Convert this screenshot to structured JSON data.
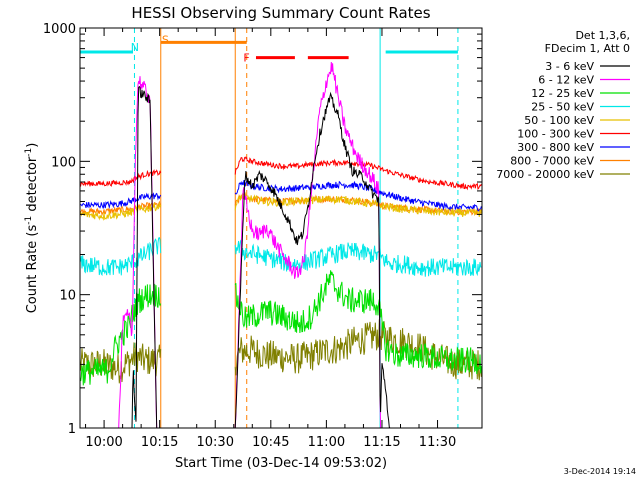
{
  "chart_data": {
    "type": "line",
    "title": "HESSI Observing Summary Count Rates",
    "xlabel": "Start Time (03-Dec-14 09:53:02)",
    "ylabel_main": "Count Rate (s",
    "ylabel_sup1": "-1",
    "ylabel_mid": " detector",
    "ylabel_sup2": "-1",
    "ylabel_end": ")",
    "ylog": true,
    "ylim": [
      1,
      1000
    ],
    "xlim_minutes": [
      -6.5,
      102
    ],
    "x_ticks": [
      {
        "t": 0,
        "label": "10:00"
      },
      {
        "t": 15,
        "label": "10:15"
      },
      {
        "t": 30,
        "label": "10:30"
      },
      {
        "t": 45,
        "label": "10:45"
      },
      {
        "t": 60,
        "label": "11:00"
      },
      {
        "t": 75,
        "label": "11:15"
      },
      {
        "t": 90,
        "label": "11:30"
      }
    ],
    "y_ticks": [
      {
        "v": 1,
        "label": "1"
      },
      {
        "v": 10,
        "label": "10"
      },
      {
        "v": 100,
        "label": "100"
      },
      {
        "v": 1000,
        "label": "1000"
      }
    ],
    "legend_header": [
      "Det 1,3,6,",
      "FDecim 1, Att 0"
    ],
    "legend": [
      {
        "label": "3 - 6 keV",
        "color": "#000000"
      },
      {
        "label": "6 - 12 keV",
        "color": "#ff00ff"
      },
      {
        "label": "12 - 25 keV",
        "color": "#00e000"
      },
      {
        "label": "25 - 50 keV",
        "color": "#00e8e8"
      },
      {
        "label": "50 - 100 keV",
        "color": "#e8c000"
      },
      {
        "label": "100 - 300 keV",
        "color": "#ff0000"
      },
      {
        "label": "300 - 800 keV",
        "color": "#0000ff"
      },
      {
        "label": "800 - 7000 keV",
        "color": "#ff8000"
      },
      {
        "label": "7000 - 20000 keV",
        "color": "#808000"
      }
    ],
    "segments": [
      [
        -6.5,
        15.3
      ],
      [
        35.4,
        102
      ]
    ],
    "annotations": {
      "night_color": "#00e8e8",
      "saa_color": "#ff8000",
      "flare_color": "#ff0000",
      "night_bars": [
        [
          -6.5,
          7.8
        ],
        [
          76,
          95.5
        ]
      ],
      "saa_bar": [
        15.3,
        38.5
      ],
      "flare_bars": [
        [
          41,
          51.5
        ],
        [
          55,
          66
        ]
      ],
      "solid_lines": [
        {
          "t": -6.5,
          "color": "#00e8e8"
        },
        {
          "t": 15.3,
          "color": "#ff8000"
        },
        {
          "t": 35.4,
          "color": "#ff8000"
        },
        {
          "t": 74.5,
          "color": "#00e8e8"
        }
      ],
      "dashed_lines": [
        {
          "t": 8.2,
          "color": "#00e8e8"
        },
        {
          "t": 38.5,
          "color": "#ff8000"
        },
        {
          "t": 95.5,
          "color": "#00e8e8"
        }
      ],
      "labels": [
        {
          "text": "N",
          "t": 7.2,
          "v": 720,
          "color": "#00e8e8"
        },
        {
          "text": "S",
          "t": 15.6,
          "v": 820,
          "color": "#ff8000"
        },
        {
          "text": "F",
          "t": 37.6,
          "v": 600,
          "color": "#ff0000"
        }
      ]
    },
    "series": [
      {
        "band": "3 - 6 keV",
        "color": "#000000",
        "points": [
          [
            -6.5,
            1
          ],
          [
            7.6,
            1
          ],
          [
            7.8,
            3
          ],
          [
            8.6,
            1
          ],
          [
            9.2,
            340
          ],
          [
            11,
            310
          ],
          [
            12.4,
            280
          ],
          [
            14.2,
            1
          ],
          [
            15.3,
            1
          ],
          [
            35.4,
            1
          ],
          [
            38,
            80
          ],
          [
            40,
            65
          ],
          [
            42,
            80
          ],
          [
            44,
            70
          ],
          [
            46,
            58
          ],
          [
            48,
            45
          ],
          [
            50,
            35
          ],
          [
            52,
            25
          ],
          [
            53.5,
            28
          ],
          [
            55,
            45
          ],
          [
            57,
            110
          ],
          [
            59,
            200
          ],
          [
            61,
            300
          ],
          [
            63,
            230
          ],
          [
            65,
            130
          ],
          [
            67,
            85
          ],
          [
            70,
            75
          ],
          [
            72,
            60
          ],
          [
            73,
            55
          ],
          [
            74.2,
            52
          ],
          [
            74.5,
            1
          ],
          [
            75,
            3
          ],
          [
            76,
            2
          ],
          [
            77,
            1
          ],
          [
            102,
            1
          ]
        ]
      },
      {
        "band": "6 - 12 keV",
        "color": "#ff00ff",
        "points": [
          [
            -6.5,
            1
          ],
          [
            4,
            1
          ],
          [
            5,
            6
          ],
          [
            6.5,
            7
          ],
          [
            7.6,
            5
          ],
          [
            8.4,
            100
          ],
          [
            9.2,
            420
          ],
          [
            11,
            340
          ],
          [
            12.4,
            300
          ],
          [
            14.2,
            1
          ],
          [
            15.3,
            1
          ],
          [
            35.4,
            1
          ],
          [
            37.5,
            60
          ],
          [
            39,
            40
          ],
          [
            40,
            30
          ],
          [
            42,
            28
          ],
          [
            44,
            32
          ],
          [
            46,
            25
          ],
          [
            48,
            20
          ],
          [
            50,
            17
          ],
          [
            52,
            14
          ],
          [
            54,
            18
          ],
          [
            56,
            60
          ],
          [
            58,
            220
          ],
          [
            60,
            400
          ],
          [
            61.5,
            520
          ],
          [
            63,
            320
          ],
          [
            65,
            180
          ],
          [
            67,
            130
          ],
          [
            69,
            100
          ],
          [
            71,
            85
          ],
          [
            73,
            70
          ],
          [
            74.2,
            60
          ],
          [
            74.5,
            1
          ],
          [
            78,
            1
          ],
          [
            80,
            1
          ],
          [
            81,
            1
          ],
          [
            102,
            1
          ]
        ]
      },
      {
        "band": "12 - 25 keV",
        "color": "#00e000",
        "points": [
          [
            -6.5,
            2.6
          ],
          [
            1,
            2.7
          ],
          [
            3,
            4
          ],
          [
            5,
            5
          ],
          [
            7,
            6
          ],
          [
            7.6,
            7
          ],
          [
            9.2,
            9
          ],
          [
            12,
            10
          ],
          [
            14.2,
            10
          ],
          [
            15.3,
            10
          ],
          [
            35.4,
            10
          ],
          [
            38,
            6.5
          ],
          [
            41,
            7
          ],
          [
            44,
            7.5
          ],
          [
            47,
            7
          ],
          [
            50,
            6.5
          ],
          [
            53,
            6
          ],
          [
            56,
            7
          ],
          [
            58,
            9
          ],
          [
            61,
            13
          ],
          [
            63,
            11
          ],
          [
            66,
            9
          ],
          [
            69,
            9
          ],
          [
            72,
            9
          ],
          [
            74,
            8.5
          ],
          [
            76,
            4
          ],
          [
            79,
            3.5
          ],
          [
            82,
            3.5
          ],
          [
            86,
            3.5
          ],
          [
            90,
            3.3
          ],
          [
            95,
            3.2
          ],
          [
            102,
            3.2
          ]
        ]
      },
      {
        "band": "25 - 50 keV",
        "color": "#00e8e8",
        "points": [
          [
            -6.5,
            17
          ],
          [
            0,
            16
          ],
          [
            4,
            16
          ],
          [
            7,
            17
          ],
          [
            8.5,
            18
          ],
          [
            11,
            20
          ],
          [
            14.2,
            23
          ],
          [
            15.3,
            23
          ],
          [
            35.4,
            23
          ],
          [
            38,
            21
          ],
          [
            41,
            20
          ],
          [
            44,
            19
          ],
          [
            47,
            18
          ],
          [
            50,
            17
          ],
          [
            53,
            17
          ],
          [
            56,
            18
          ],
          [
            59,
            19
          ],
          [
            62,
            20
          ],
          [
            65,
            21
          ],
          [
            68,
            21
          ],
          [
            72,
            20
          ],
          [
            74,
            20
          ],
          [
            77,
            17
          ],
          [
            81,
            17
          ],
          [
            85,
            16
          ],
          [
            89,
            16
          ],
          [
            95,
            16
          ],
          [
            102,
            16
          ]
        ]
      },
      {
        "band": "50 - 100 keV",
        "color": "#e8c000",
        "points": [
          [
            -6.5,
            40
          ],
          [
            0,
            39
          ],
          [
            4,
            40
          ],
          [
            7,
            41
          ],
          [
            8.5,
            43
          ],
          [
            11,
            44
          ],
          [
            14.2,
            46
          ],
          [
            15.3,
            46
          ],
          [
            35.4,
            46
          ],
          [
            37,
            55
          ],
          [
            40,
            52
          ],
          [
            44,
            50
          ],
          [
            48,
            49
          ],
          [
            52,
            50
          ],
          [
            56,
            51
          ],
          [
            60,
            52
          ],
          [
            64,
            52
          ],
          [
            68,
            50
          ],
          [
            72,
            48
          ],
          [
            76,
            46
          ],
          [
            80,
            44
          ],
          [
            84,
            43
          ],
          [
            88,
            42
          ],
          [
            95,
            41
          ],
          [
            102,
            41
          ]
        ]
      },
      {
        "band": "100 - 300 keV",
        "color": "#ff0000",
        "points": [
          [
            -6.5,
            68
          ],
          [
            0,
            68
          ],
          [
            4,
            69
          ],
          [
            7,
            70
          ],
          [
            8.5,
            75
          ],
          [
            11,
            80
          ],
          [
            14.2,
            82
          ],
          [
            15.3,
            82
          ],
          [
            35.4,
            82
          ],
          [
            37,
            105
          ],
          [
            40,
            100
          ],
          [
            44,
            95
          ],
          [
            48,
            92
          ],
          [
            52,
            92
          ],
          [
            56,
            95
          ],
          [
            60,
            97
          ],
          [
            64,
            98
          ],
          [
            68,
            97
          ],
          [
            72,
            93
          ],
          [
            76,
            85
          ],
          [
            80,
            79
          ],
          [
            84,
            74
          ],
          [
            88,
            70
          ],
          [
            92,
            68
          ],
          [
            97,
            65
          ],
          [
            102,
            65
          ]
        ]
      },
      {
        "band": "300 - 800 keV",
        "color": "#0000ff",
        "points": [
          [
            -6.5,
            47
          ],
          [
            0,
            47
          ],
          [
            4,
            48
          ],
          [
            7,
            50
          ],
          [
            8.5,
            52
          ],
          [
            11,
            54
          ],
          [
            14.2,
            55
          ],
          [
            15.3,
            55
          ],
          [
            35.4,
            55
          ],
          [
            37,
            70
          ],
          [
            40,
            65
          ],
          [
            44,
            63
          ],
          [
            48,
            62
          ],
          [
            52,
            63
          ],
          [
            56,
            64
          ],
          [
            60,
            66
          ],
          [
            64,
            67
          ],
          [
            68,
            66
          ],
          [
            72,
            62
          ],
          [
            76,
            57
          ],
          [
            80,
            53
          ],
          [
            84,
            50
          ],
          [
            88,
            48
          ],
          [
            92,
            46
          ],
          [
            97,
            45
          ],
          [
            102,
            45
          ]
        ]
      },
      {
        "band": "800 - 7000 keV",
        "color": "#ff8000",
        "points": [
          [
            -6.5,
            42
          ],
          [
            0,
            42
          ],
          [
            4,
            43
          ],
          [
            7,
            44
          ],
          [
            8.5,
            45
          ],
          [
            11,
            46
          ],
          [
            14.2,
            47
          ],
          [
            15.3,
            47
          ],
          [
            35.4,
            47
          ],
          [
            37,
            55
          ],
          [
            40,
            52
          ],
          [
            44,
            51
          ],
          [
            48,
            50
          ],
          [
            52,
            51
          ],
          [
            56,
            52
          ],
          [
            60,
            52
          ],
          [
            64,
            52
          ],
          [
            68,
            51
          ],
          [
            72,
            49
          ],
          [
            76,
            46
          ],
          [
            80,
            45
          ],
          [
            84,
            44
          ],
          [
            88,
            43
          ],
          [
            92,
            42
          ],
          [
            97,
            42
          ],
          [
            102,
            42
          ]
        ]
      },
      {
        "band": "7000 - 20000 keV",
        "color": "#808000",
        "points": [
          [
            -6.5,
            3
          ],
          [
            0,
            3
          ],
          [
            4,
            2.8
          ],
          [
            7,
            3.2
          ],
          [
            8.5,
            3.5
          ],
          [
            11,
            3.2
          ],
          [
            14.2,
            3.2
          ],
          [
            15.3,
            3.2
          ],
          [
            35.4,
            3.2
          ],
          [
            37,
            3.8
          ],
          [
            40,
            3.8
          ],
          [
            44,
            3.5
          ],
          [
            48,
            3.4
          ],
          [
            52,
            3.3
          ],
          [
            56,
            3.5
          ],
          [
            60,
            3.8
          ],
          [
            64,
            4
          ],
          [
            68,
            4.5
          ],
          [
            72,
            4.8
          ],
          [
            74,
            5
          ],
          [
            76,
            4.8
          ],
          [
            80,
            4.5
          ],
          [
            84,
            4.2
          ],
          [
            88,
            3.6
          ],
          [
            92,
            3.2
          ],
          [
            96,
            3
          ],
          [
            102,
            3
          ]
        ]
      }
    ],
    "legend_placement": "top-right outside plot",
    "grid": false
  },
  "footer": {
    "timestamp": "3-Dec-2014 19:14"
  }
}
